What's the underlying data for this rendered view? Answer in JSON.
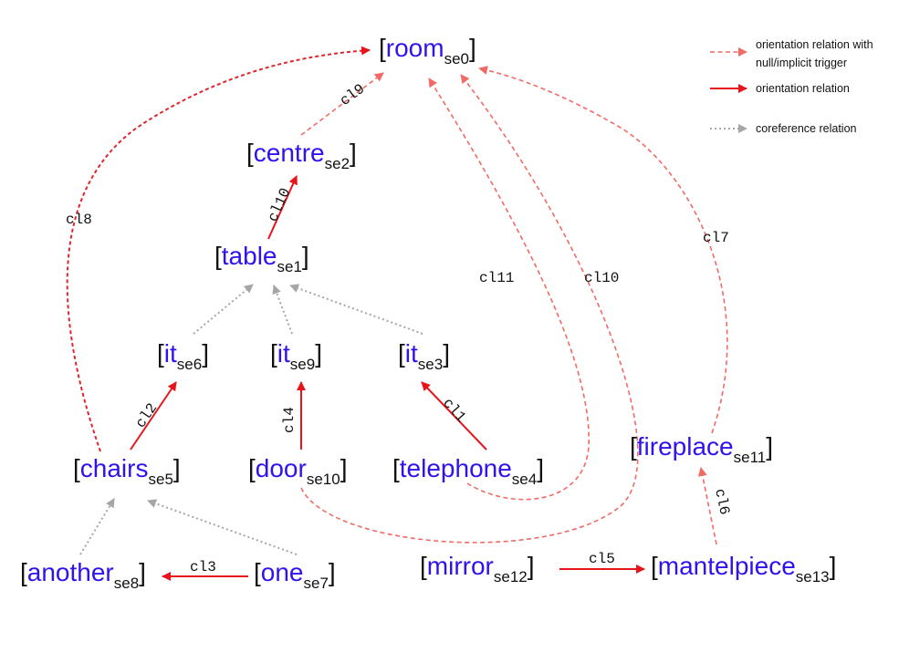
{
  "nodes": {
    "room": {
      "word": "room",
      "sub": "se0"
    },
    "centre": {
      "word": "centre",
      "sub": "se2"
    },
    "table": {
      "word": "table",
      "sub": "se1"
    },
    "it6": {
      "word": "it",
      "sub": "se6"
    },
    "it9": {
      "word": "it",
      "sub": "se9"
    },
    "it3": {
      "word": "it",
      "sub": "se3"
    },
    "chairs": {
      "word": "chairs",
      "sub": "se5"
    },
    "door": {
      "word": "door",
      "sub": "se10"
    },
    "telephone": {
      "word": "telephone",
      "sub": "se4"
    },
    "fireplace": {
      "word": "fireplace",
      "sub": "se11"
    },
    "another": {
      "word": "another",
      "sub": "se8"
    },
    "one": {
      "word": "one",
      "sub": "se7"
    },
    "mirror": {
      "word": "mirror",
      "sub": "se12"
    },
    "mantelpiece": {
      "word": "mantelpiece",
      "sub": "se13"
    }
  },
  "brackets": {
    "open": "[",
    "close": "]"
  },
  "edges": {
    "cl9": "cl9",
    "cl8": "cl8",
    "cl10a": "cl10",
    "cl11": "cl11",
    "cl10b": "cl10",
    "cl7": "cl7",
    "cl2": "cl2",
    "cl4": "cl4",
    "cl1": "cl1",
    "cl3": "cl3",
    "cl5": "cl5",
    "cl6": "cl6"
  },
  "legend": {
    "null_line1": "orientation relation with",
    "null_line2": "null/implicit trigger",
    "orient": "orientation relation",
    "coref": "coreference relation"
  },
  "colors": {
    "entity": "#2f13ee",
    "orientation": "#e8141b",
    "null_trigger": "#f06a66",
    "coreference": "#a6a6a6"
  }
}
